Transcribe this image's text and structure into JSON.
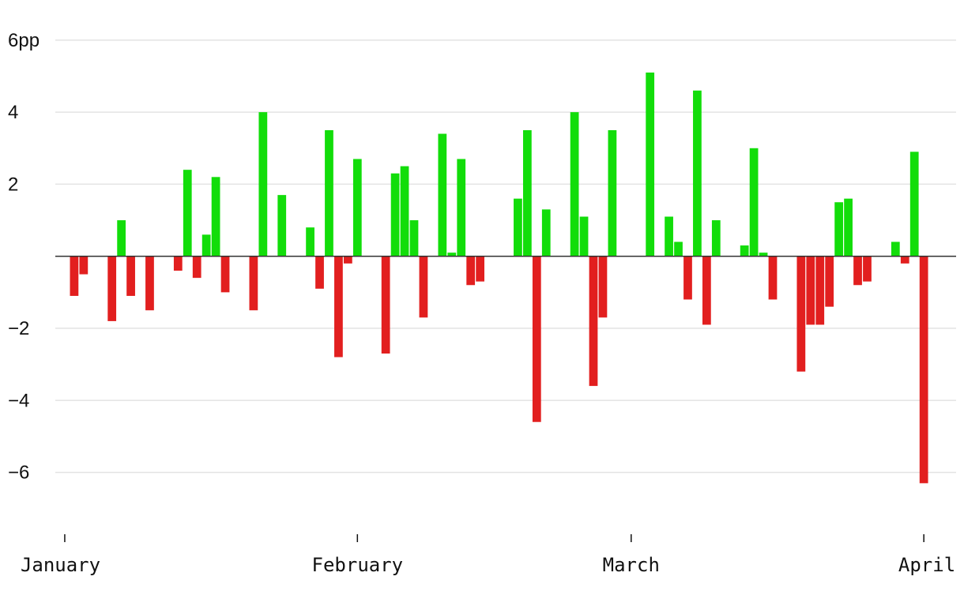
{
  "chart_data": {
    "type": "bar",
    "y_unit": "pp",
    "ylim": [
      -7.3,
      6.5
    ],
    "y_ticks": [
      {
        "value": 6,
        "label": "6pp"
      },
      {
        "value": 4,
        "label": "4"
      },
      {
        "value": 2,
        "label": "2"
      },
      {
        "value": -2,
        "label": "−2"
      },
      {
        "value": -4,
        "label": "−4"
      },
      {
        "value": -6,
        "label": "−6"
      }
    ],
    "grid": true,
    "x_ticks": [
      {
        "date": "2024-01-01",
        "label": "January"
      },
      {
        "date": "2024-02-01",
        "label": "February"
      },
      {
        "date": "2024-03-01",
        "label": "March"
      },
      {
        "date": "2024-04-01",
        "label": "April"
      }
    ],
    "xlim": [
      "2023-12-31",
      "2024-04-04"
    ],
    "colors": {
      "positive": "#12dd0a",
      "negative": "#e21f1f"
    },
    "x": [
      "2024-01-02",
      "2024-01-03",
      "2024-01-06",
      "2024-01-07",
      "2024-01-08",
      "2024-01-10",
      "2024-01-13",
      "2024-01-14",
      "2024-01-15",
      "2024-01-16",
      "2024-01-17",
      "2024-01-18",
      "2024-01-21",
      "2024-01-22",
      "2024-01-24",
      "2024-01-27",
      "2024-01-28",
      "2024-01-29",
      "2024-01-30",
      "2024-01-31",
      "2024-02-01",
      "2024-02-04",
      "2024-02-05",
      "2024-02-06",
      "2024-02-07",
      "2024-02-08",
      "2024-02-10",
      "2024-02-11",
      "2024-02-12",
      "2024-02-13",
      "2024-02-14",
      "2024-02-18",
      "2024-02-19",
      "2024-02-20",
      "2024-02-21",
      "2024-02-24",
      "2024-02-25",
      "2024-02-26",
      "2024-02-27",
      "2024-02-28",
      "2024-03-03",
      "2024-03-05",
      "2024-03-06",
      "2024-03-07",
      "2024-03-08",
      "2024-03-09",
      "2024-03-10",
      "2024-03-13",
      "2024-03-14",
      "2024-03-15",
      "2024-03-16",
      "2024-03-19",
      "2024-03-20",
      "2024-03-21",
      "2024-03-22",
      "2024-03-23",
      "2024-03-24",
      "2024-03-25",
      "2024-03-26",
      "2024-03-29",
      "2024-03-30",
      "2024-03-31",
      "2024-04-01",
      "2024-04-03"
    ],
    "values": [
      -1.1,
      -0.5,
      -1.8,
      1.0,
      -1.1,
      -1.5,
      -0.4,
      2.4,
      -0.6,
      0.6,
      2.2,
      -1.0,
      -1.5,
      4.0,
      1.7,
      0.8,
      -0.9,
      3.5,
      -2.8,
      -0.2,
      2.7,
      -2.7,
      2.3,
      2.5,
      1.0,
      -1.7,
      3.4,
      0.1,
      2.7,
      -0.8,
      -0.7,
      1.6,
      3.5,
      -4.6,
      1.3,
      4.0,
      1.1,
      -3.6,
      -1.7,
      3.5,
      5.1,
      1.1,
      0.4,
      -1.2,
      4.6,
      -1.9,
      1.0,
      0.3,
      3.0,
      0.1,
      -1.2,
      -3.2,
      -1.9,
      -1.9,
      -1.4,
      1.5,
      1.6,
      -0.8,
      -0.7,
      0.4,
      -0.2,
      2.9,
      -6.3,
      0.0
    ]
  }
}
